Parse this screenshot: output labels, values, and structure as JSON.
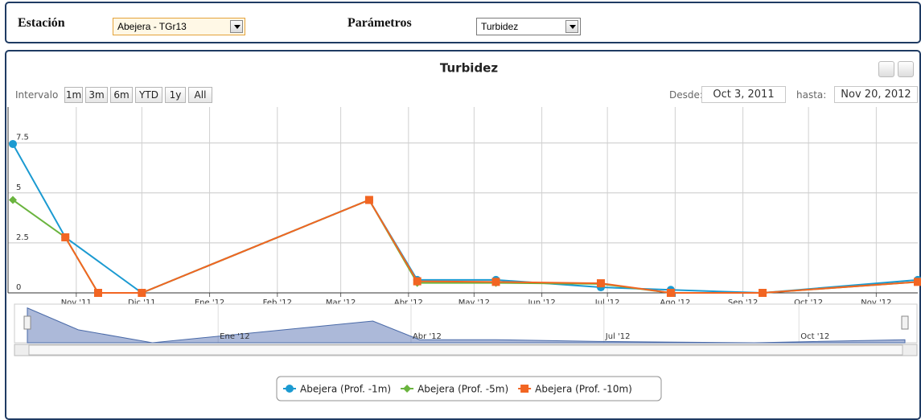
{
  "header": {
    "station_label": "Estación",
    "station_value": "Abejera - TGr13",
    "param_label": "Parámetros",
    "param_value": "Turbidez"
  },
  "range_selector": {
    "label": "Intervalo",
    "buttons": [
      "1m",
      "3m",
      "6m",
      "YTD",
      "1y",
      "All"
    ],
    "from_label": "Desde:",
    "from": "Oct 3, 2011",
    "to_label": "hasta:",
    "to": "Nov 20, 2012"
  },
  "chart_data": {
    "type": "line",
    "title": "Turbidez",
    "xlim": [
      "2011-10-03",
      "2012-11-20"
    ],
    "xticks": [
      {
        "value": "2011-11-01",
        "label": "Nov '11"
      },
      {
        "value": "2011-12-01",
        "label": "Dic '11"
      },
      {
        "value": "2012-01-01",
        "label": "Ene '12"
      },
      {
        "value": "2012-02-01",
        "label": "Feb '12"
      },
      {
        "value": "2012-03-01",
        "label": "Mar '12"
      },
      {
        "value": "2012-04-01",
        "label": "Abr '12"
      },
      {
        "value": "2012-05-01",
        "label": "May '12"
      },
      {
        "value": "2012-06-01",
        "label": "Jun '12"
      },
      {
        "value": "2012-07-01",
        "label": "Jul '12"
      },
      {
        "value": "2012-08-01",
        "label": "Ago '12"
      },
      {
        "value": "2012-09-01",
        "label": "Sep '12"
      },
      {
        "value": "2012-10-01",
        "label": "Oct '12"
      },
      {
        "value": "2012-11-01",
        "label": "Nov '12"
      }
    ],
    "ylim": [
      0,
      9.3
    ],
    "yticks": [
      0,
      2.5,
      5,
      7.5
    ],
    "grid": true,
    "series": [
      {
        "name": "Abejera (Prof. -1m)",
        "color": "#1b9ad1",
        "marker": "circle",
        "x": [
          "2011-10-03",
          "2011-10-27",
          "2011-12-01",
          "2012-03-14",
          "2012-04-05",
          "2012-05-11",
          "2012-06-28",
          "2012-07-30",
          "2012-09-10",
          "2012-11-20"
        ],
        "values": [
          7.45,
          2.78,
          0,
          4.65,
          0.65,
          0.65,
          0.28,
          0.15,
          0,
          0.65
        ]
      },
      {
        "name": "Abejera (Prof. -5m)",
        "color": "#6ab43e",
        "marker": "diamond",
        "x": [
          "2011-10-03",
          "2011-10-27",
          "2011-11-11",
          "2011-12-01",
          "2012-03-14",
          "2012-04-05",
          "2012-05-11",
          "2012-06-28",
          "2012-07-30",
          "2012-09-10",
          "2012-11-20"
        ],
        "values": [
          4.65,
          2.78,
          0,
          0,
          4.65,
          0.5,
          0.5,
          0.45,
          0,
          0,
          0.55
        ]
      },
      {
        "name": "Abejera (Prof. -10m)",
        "color": "#f26522",
        "marker": "square",
        "x": [
          "2011-10-27",
          "2011-11-11",
          "2011-12-01",
          "2012-03-14",
          "2012-04-05",
          "2012-05-11",
          "2012-06-28",
          "2012-07-30",
          "2012-09-10",
          "2012-11-20"
        ],
        "values": [
          2.78,
          0,
          0,
          4.65,
          0.58,
          0.55,
          0.48,
          0,
          0,
          0.55
        ]
      }
    ],
    "navigator": {
      "labels": [
        {
          "value": "2012-01-01",
          "label": "Ene '12"
        },
        {
          "value": "2012-04-01",
          "label": "Abr '12"
        },
        {
          "value": "2012-07-01",
          "label": "Jul '12"
        },
        {
          "value": "2012-10-01",
          "label": "Oct '12"
        }
      ]
    }
  }
}
